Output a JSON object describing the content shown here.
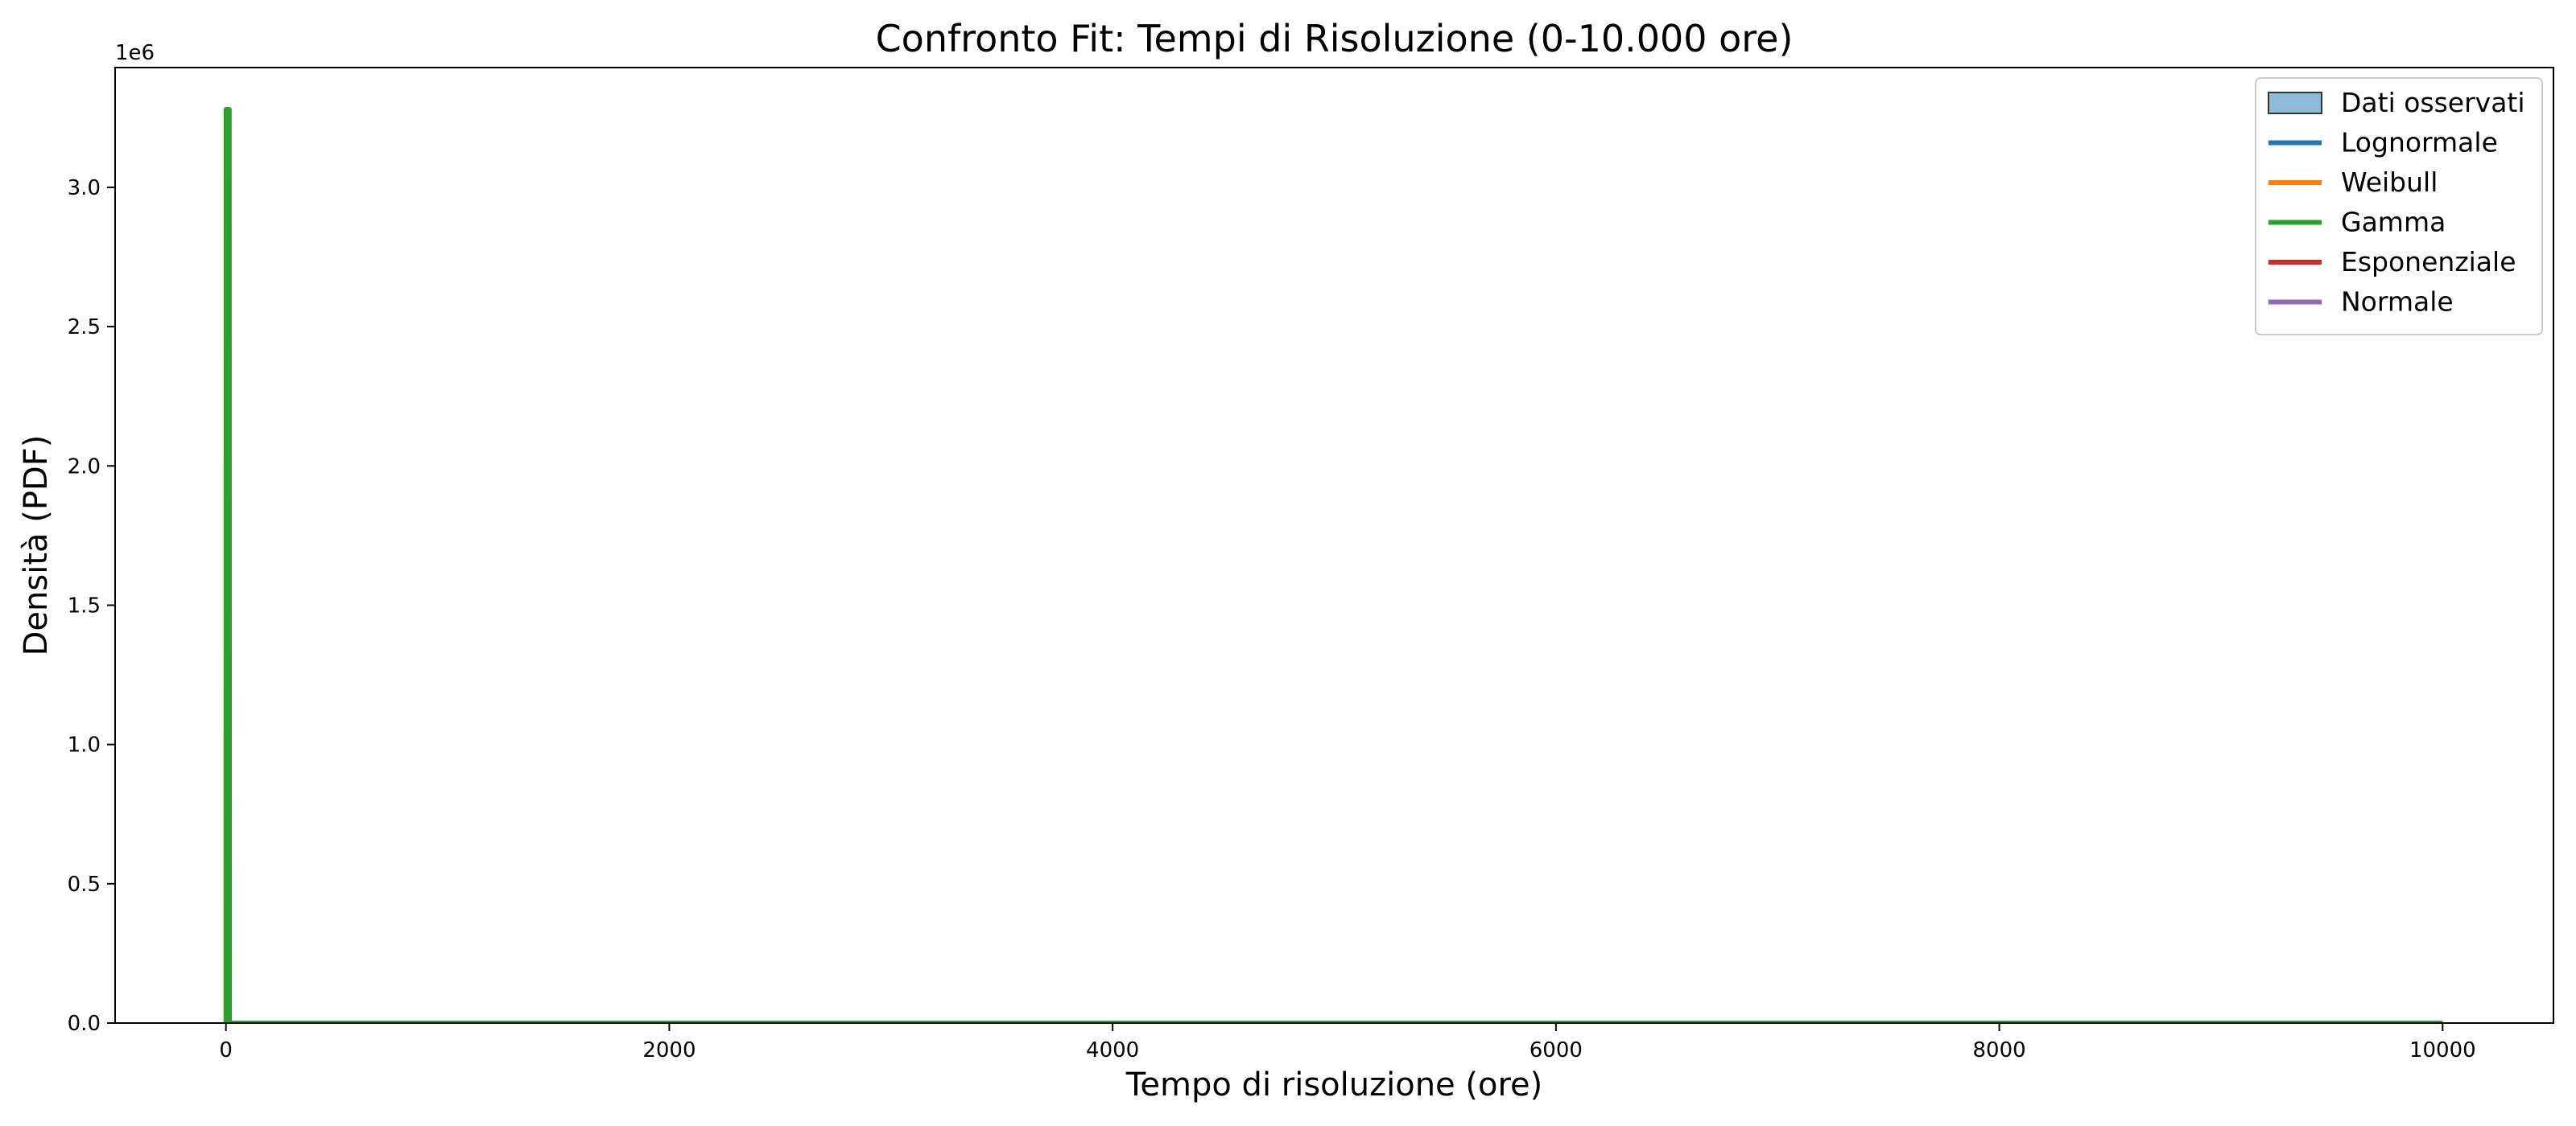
{
  "chart_data": {
    "type": "line",
    "title": "Confronto Fit: Tempi di Risoluzione (0-10.000 ore)",
    "xlabel": "Tempo di risoluzione (ore)",
    "ylabel": "Densità (PDF)",
    "y_offset_label": "1e6",
    "y_scale_factor": 1000000,
    "xlim": [
      -500,
      10500
    ],
    "ylim": [
      0,
      3.43
    ],
    "x_ticks": [
      0,
      2000,
      4000,
      6000,
      8000,
      10000
    ],
    "y_ticks": [
      0.0,
      0.5,
      1.0,
      1.5,
      2.0,
      2.5,
      3.0
    ],
    "grid": false,
    "legend_position": "top-right",
    "histogram": {
      "name": "Dati osservati",
      "color": "#1f77b4",
      "note": "bars not visible at this density scale"
    },
    "series": [
      {
        "name": "Lognormale",
        "color": "#1f77b4",
        "x": [
          0,
          20,
          10000
        ],
        "y": [
          0,
          0,
          0
        ]
      },
      {
        "name": "Weibull",
        "color": "#ff7f0e",
        "x": [
          0,
          5,
          20,
          10000
        ],
        "y": [
          0,
          0.03,
          0,
          0
        ]
      },
      {
        "name": "Gamma",
        "color": "#2ca02c",
        "x": [
          0,
          0.5,
          15,
          16,
          10000
        ],
        "y": [
          0,
          3.28,
          3.28,
          0,
          0
        ]
      },
      {
        "name": "Esponenziale",
        "color": "#d62728",
        "x": [
          0,
          20,
          10000
        ],
        "y": [
          0,
          0,
          0
        ]
      },
      {
        "name": "Normale",
        "color": "#9467bd",
        "x": [
          0,
          10000
        ],
        "y": [
          0,
          0
        ]
      }
    ]
  }
}
